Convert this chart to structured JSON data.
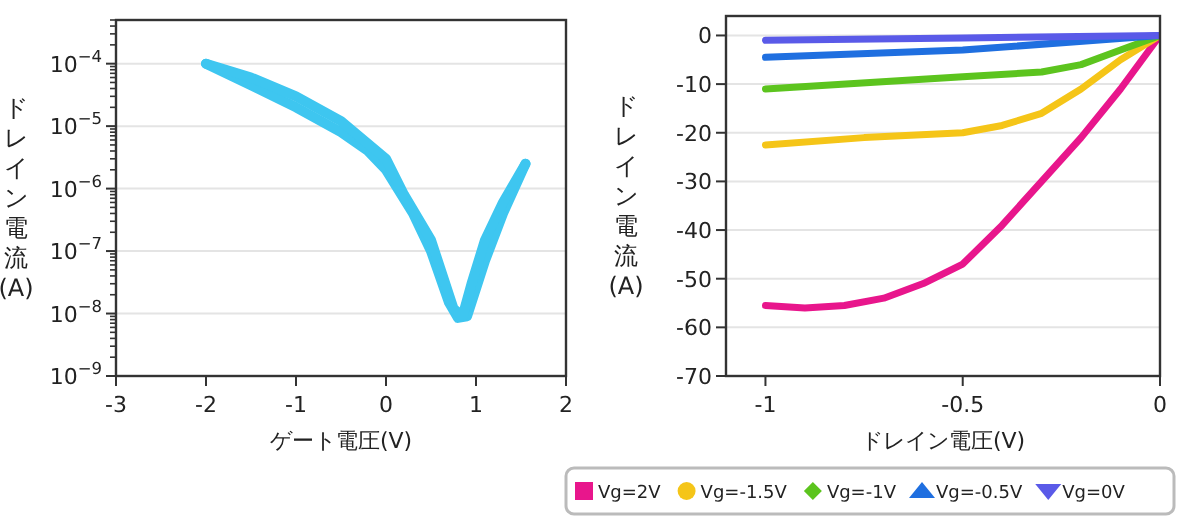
{
  "chart_data": [
    {
      "type": "line",
      "xlabel": "ゲート電圧(V)",
      "ylabel": "ドレイン電流(A)",
      "log": "y",
      "xlim": [
        -3,
        2
      ],
      "xticks": [
        -3,
        -2,
        -1,
        0,
        1,
        2
      ],
      "ylim": [
        1e-09,
        0.0005
      ],
      "yticks": [
        {
          "value": 1e-09,
          "label": "10$^{−9}$"
        },
        {
          "value": 1e-08,
          "label": "10$^{−8}$"
        },
        {
          "value": 1e-07,
          "label": "10$^{−7}$"
        },
        {
          "value": 1e-06,
          "label": "10$^{−6}$"
        },
        {
          "value": 1e-05,
          "label": "10$^{−5}$"
        },
        {
          "value": 0.0001,
          "label": "10$^{−4}$"
        }
      ],
      "grid": "y",
      "series": [
        {
          "color": "#3ec6f0",
          "x": [
            -2,
            -1.5,
            -1,
            -0.5,
            -0.2,
            0,
            0.3,
            0.5,
            0.7,
            0.8,
            0.9,
            1.1,
            1.3,
            1.55
          ],
          "values": [
            0.0001,
            4.5e-05,
            2e-05,
            8e-06,
            4e-06,
            2e-06,
            4e-07,
            1e-07,
            1.5e-08,
            8.5e-09,
            9e-09,
            7e-08,
            4e-07,
            2.5e-06
          ]
        },
        {
          "color": "#3ec6f0",
          "x": [
            1.55,
            1.3,
            1.1,
            0.95,
            0.85,
            0.75,
            0.5,
            0.2,
            0,
            -0.5,
            -1,
            -1.5,
            -2
          ],
          "values": [
            2.5e-06,
            6e-07,
            1.5e-07,
            3e-08,
            9e-09,
            1.2e-08,
            1.5e-07,
            8e-07,
            3e-06,
            1.2e-05,
            3e-05,
            6e-05,
            0.0001
          ]
        }
      ]
    },
    {
      "type": "line",
      "xlabel": "ドレイン電圧(V)",
      "ylabel": "ドレイン電流(A)",
      "xlim": [
        -1.1,
        0
      ],
      "xticks": [
        -1,
        -0.5,
        0
      ],
      "ylim": [
        -70,
        4
      ],
      "yticks": [
        -70,
        -60,
        -50,
        -40,
        -30,
        -20,
        -10,
        0
      ],
      "grid": "y",
      "legend": "bottom",
      "series": [
        {
          "name": "Vg=2V",
          "color": "#e8168c",
          "x": [
            -1,
            -0.9,
            -0.8,
            -0.7,
            -0.6,
            -0.5,
            -0.4,
            -0.3,
            -0.2,
            -0.1,
            0
          ],
          "values": [
            -55.5,
            -56,
            -55.5,
            -54,
            -51,
            -47,
            -39,
            -30,
            -21,
            -11,
            0
          ]
        },
        {
          "name": "Vg=-1.5V",
          "color": "#f5c518",
          "x": [
            -1,
            -0.75,
            -0.5,
            -0.4,
            -0.3,
            -0.2,
            -0.1,
            0
          ],
          "values": [
            -22.5,
            -21,
            -20,
            -18.5,
            -16,
            -11,
            -5,
            0
          ]
        },
        {
          "name": "Vg=-1V",
          "color": "#5cc41e",
          "x": [
            -1,
            -0.5,
            -0.3,
            -0.2,
            -0.1,
            0
          ],
          "values": [
            -11,
            -8.5,
            -7.5,
            -6,
            -3,
            0
          ]
        },
        {
          "name": "Vg=-0.5V",
          "color": "#1f6fe0",
          "x": [
            -1,
            -0.5,
            0
          ],
          "values": [
            -4.5,
            -3,
            0
          ]
        },
        {
          "name": "Vg=0V",
          "color": "#5a5ae8",
          "x": [
            -1,
            -0.5,
            0
          ],
          "values": [
            -1,
            -0.5,
            0
          ]
        }
      ]
    }
  ]
}
